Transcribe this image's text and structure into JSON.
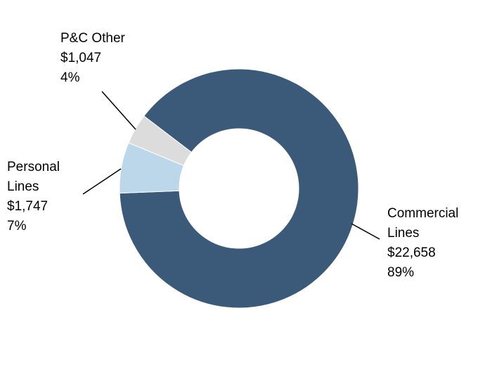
{
  "chart_data": {
    "type": "donut",
    "categories": [
      "Commercial Lines",
      "Personal Lines",
      "P&C Other"
    ],
    "values": [
      22658,
      1747,
      1047
    ],
    "value_labels": [
      "$22,658",
      "$1,747",
      "$1,047"
    ],
    "percentages": [
      89,
      7,
      4
    ],
    "percentage_labels": [
      "89%",
      "7%",
      "4%"
    ],
    "colors": [
      "#3b5a7a",
      "#bcd7ea",
      "#dcdcdc"
    ]
  }
}
